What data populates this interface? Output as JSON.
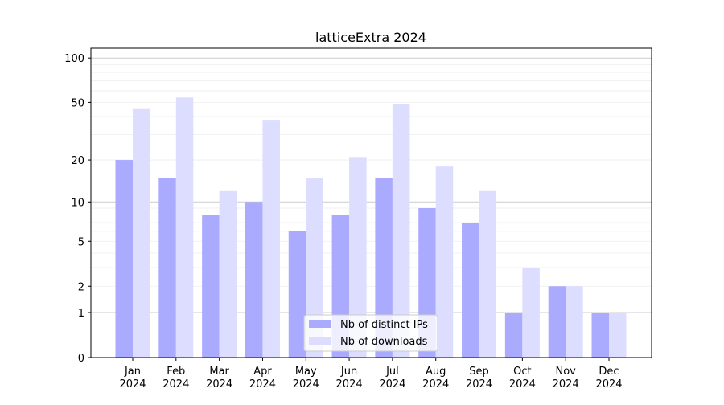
{
  "chart_data": {
    "type": "bar",
    "title": "latticeExtra 2024",
    "xlabel": "",
    "ylabel": "",
    "yscale": "symlog (log10(1+y))",
    "ylim": [
      0,
      110
    ],
    "yticks": [
      0,
      1,
      2,
      5,
      10,
      20,
      50,
      100
    ],
    "grid": true,
    "legend_position": "bottom-center",
    "categories": [
      "Jan\n2024",
      "Feb\n2024",
      "Mar\n2024",
      "Apr\n2024",
      "May\n2024",
      "Jun\n2024",
      "Jul\n2024",
      "Aug\n2024",
      "Sep\n2024",
      "Oct\n2024",
      "Nov\n2024",
      "Dec\n2024"
    ],
    "series": [
      {
        "name": "Nb of distinct IPs",
        "color": "#aaaaff",
        "values": [
          20,
          15,
          8,
          10,
          6,
          8,
          15,
          9,
          7,
          1,
          2,
          1
        ]
      },
      {
        "name": "Nb of downloads",
        "color": "#ddddff",
        "values": [
          45,
          54,
          12,
          38,
          15,
          21,
          49,
          18,
          12,
          3,
          2,
          1
        ]
      }
    ]
  }
}
